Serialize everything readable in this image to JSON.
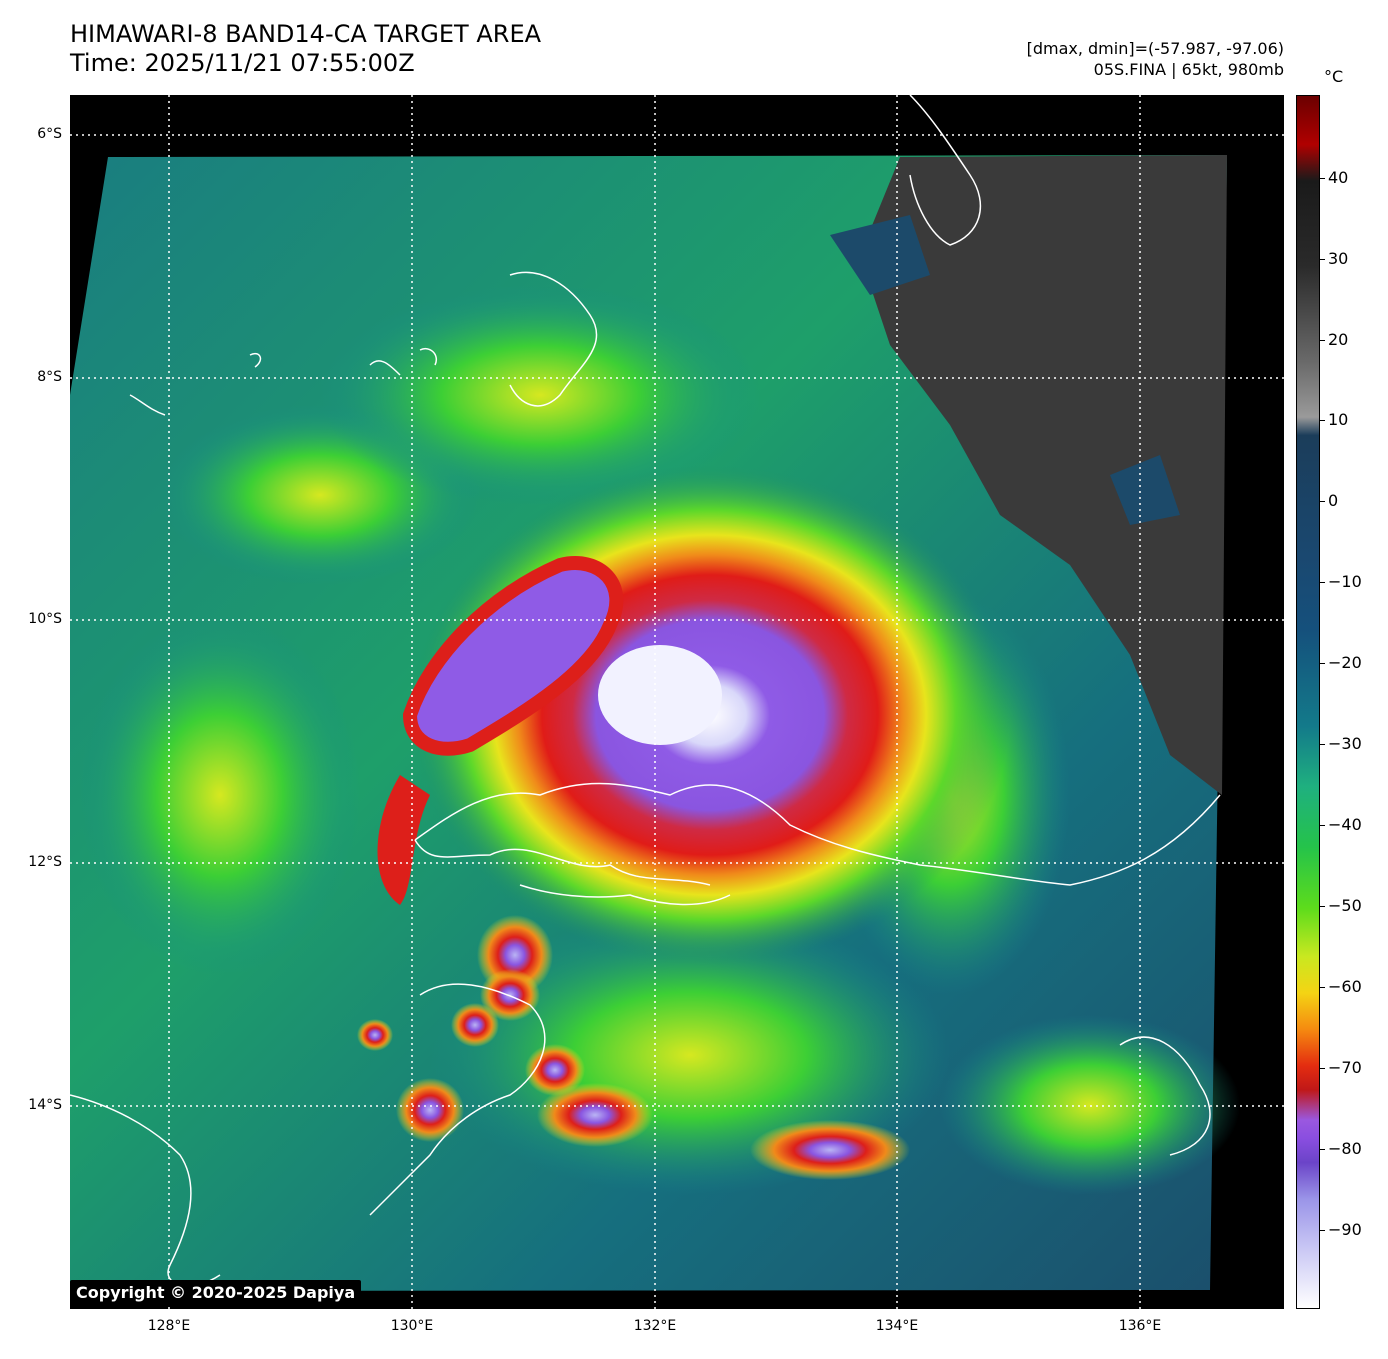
{
  "title": {
    "line1": "HIMAWARI-8 BAND14-CA TARGET AREA",
    "line2": "Time: 2025/11/21 07:55:00Z"
  },
  "info": {
    "line1": "[dmax, dmin]=(-57.987, -97.06)",
    "line2": "05S.FINA | 65kt, 980mb"
  },
  "map": {
    "lat_labels": [
      "6°S",
      "8°S",
      "10°S",
      "12°S",
      "14°S"
    ],
    "lon_labels": [
      "128°E",
      "130°E",
      "132°E",
      "134°E",
      "136°E"
    ],
    "colors": {
      "eye": "#f2f2ff",
      "cold_top": "#8f5be6",
      "red_band": "#dd1f1a",
      "orange": "#f08a1a",
      "yellow": "#e8e41c",
      "green": "#39d12c",
      "teal": "#168b8d",
      "blue_dark": "#174a6e",
      "clear_gray": "#3a3a3a",
      "coastline": "#ffffff"
    }
  },
  "colorbar": {
    "unit": "°C",
    "ticks": [
      "40",
      "30",
      "20",
      "10",
      "0",
      "−10",
      "−20",
      "−30",
      "−40",
      "−50",
      "−60",
      "−70",
      "−80",
      "−90"
    ]
  },
  "copyright": "Copyright © 2020-2025 Dapiya"
}
